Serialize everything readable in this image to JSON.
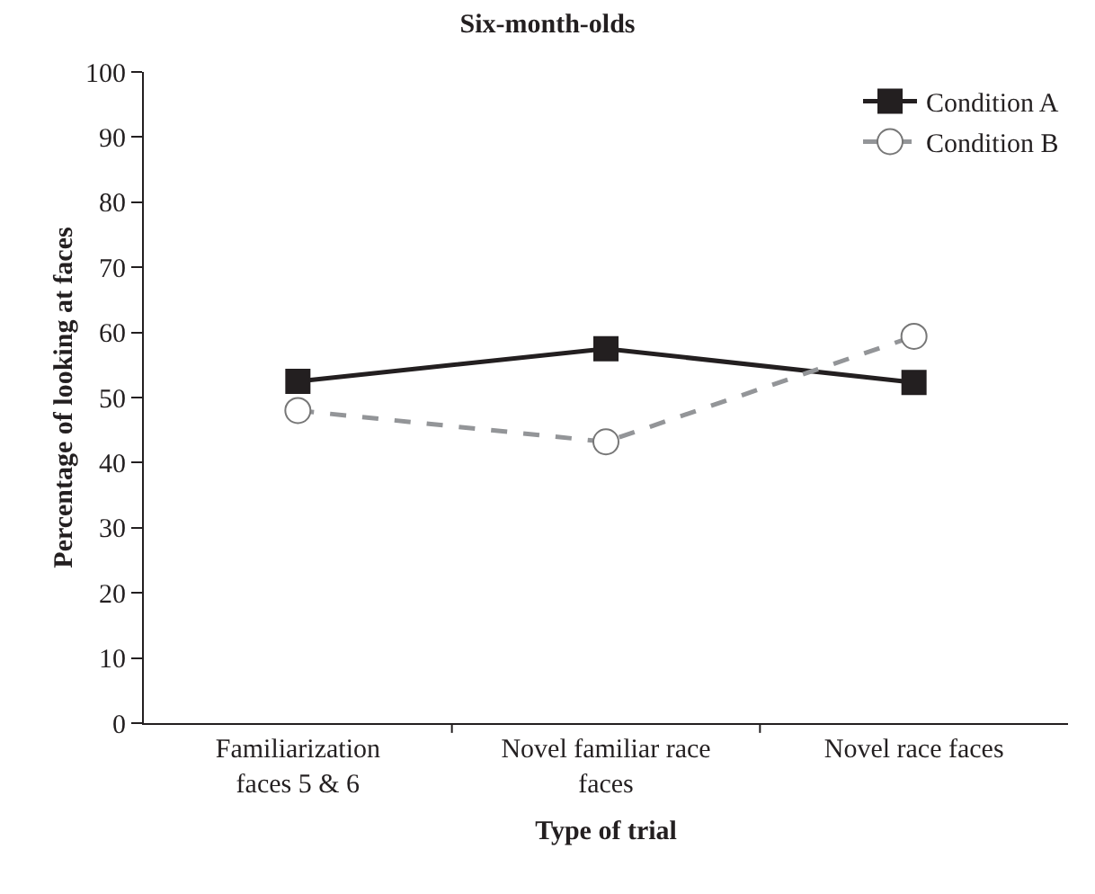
{
  "chart_data": {
    "type": "line",
    "title": "Six-month-olds",
    "xlabel": "Type of trial",
    "ylabel": "Percentage of looking at faces",
    "categories": [
      "Familiarization faces 5 & 6",
      "Novel familiar race faces",
      "Novel race faces"
    ],
    "series": [
      {
        "name": "Condition A",
        "color": "#231f20",
        "values": [
          52.5,
          57.5,
          52.3
        ],
        "marker": "square",
        "line_style": "solid"
      },
      {
        "name": "Condition B",
        "color": "#939598",
        "values": [
          48,
          43.2,
          59.4
        ],
        "marker": "circle",
        "line_style": "dashed"
      }
    ],
    "ylim": [
      0,
      100
    ],
    "yticks": [
      0,
      10,
      20,
      30,
      40,
      50,
      60,
      70,
      80,
      90,
      100
    ],
    "grid": false,
    "legend": "top right"
  }
}
